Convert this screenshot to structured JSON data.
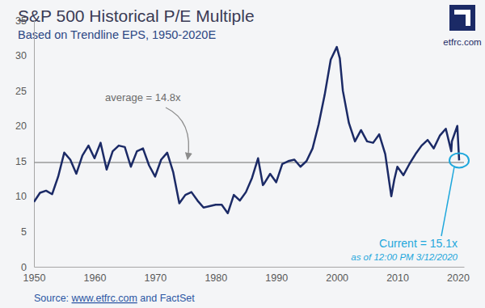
{
  "chart_data": {
    "type": "line",
    "title": "S&P 500 Historical P/E Multiple",
    "subtitle": "Based on Trendline EPS, 1950-2020E",
    "logo_text": "etfrc.com",
    "source": [
      "Source: ",
      "www.etfrc.com",
      " and FactSet"
    ],
    "color": "#1b2a66",
    "x": [
      1950,
      1951,
      1952,
      1953,
      1954,
      1955,
      1956,
      1957,
      1958,
      1959,
      1960,
      1961,
      1962,
      1963,
      1964,
      1965,
      1966,
      1967,
      1968,
      1969,
      1970,
      1971,
      1972,
      1973,
      1974,
      1975,
      1976,
      1977,
      1978,
      1979,
      1980,
      1981,
      1982,
      1983,
      1984,
      1985,
      1986,
      1987,
      1987.8,
      1988,
      1989,
      1990,
      1991,
      1992,
      1993,
      1994,
      1995,
      1996,
      1997,
      1998,
      1999,
      2000,
      2000.5,
      2001,
      2002,
      2003,
      2004,
      2005,
      2006,
      2007,
      2008,
      2009,
      2009.5,
      2010,
      2011,
      2012,
      2013,
      2014,
      2015,
      2016,
      2017,
      2018,
      2018.9,
      2019,
      2019.9,
      2020.2
    ],
    "values": [
      9.2,
      10.5,
      10.8,
      10.3,
      12.8,
      16.2,
      15.2,
      13.2,
      15.8,
      17.2,
      15.4,
      17.6,
      13.8,
      16.4,
      17.2,
      17,
      14.2,
      16.4,
      16.8,
      14.4,
      12.8,
      15.2,
      16.2,
      13.4,
      9,
      10.2,
      10.6,
      9.4,
      8.4,
      8.6,
      8.8,
      8.8,
      7.6,
      10.2,
      9.4,
      10.6,
      12.6,
      15.4,
      11.6,
      11.8,
      13.2,
      12,
      14.6,
      15,
      15.2,
      14.2,
      15,
      16.8,
      20.2,
      24.4,
      29.4,
      31.2,
      29.6,
      25,
      20.4,
      17.8,
      19.4,
      17.8,
      17.6,
      18.8,
      16,
      10,
      12.4,
      14.2,
      13,
      14.6,
      16,
      17.2,
      18,
      16.8,
      18.6,
      19.6,
      16.4,
      17.8,
      20,
      15.1
    ],
    "xlim": [
      1950,
      2021
    ],
    "xticks": [
      1950,
      1960,
      1970,
      1980,
      1990,
      2000,
      2010,
      2020
    ],
    "ylim": [
      0,
      35
    ],
    "yticks": [
      0,
      5,
      10,
      15,
      20,
      25,
      30,
      35
    ],
    "grid": false,
    "annotations": [
      {
        "text": "average = 14.8x",
        "value": 14.8
      },
      {
        "text": "Current = 15.1x",
        "note": "as of 12:00 PM 3/12/2020",
        "x": 2020.2,
        "value": 15.1
      }
    ]
  }
}
